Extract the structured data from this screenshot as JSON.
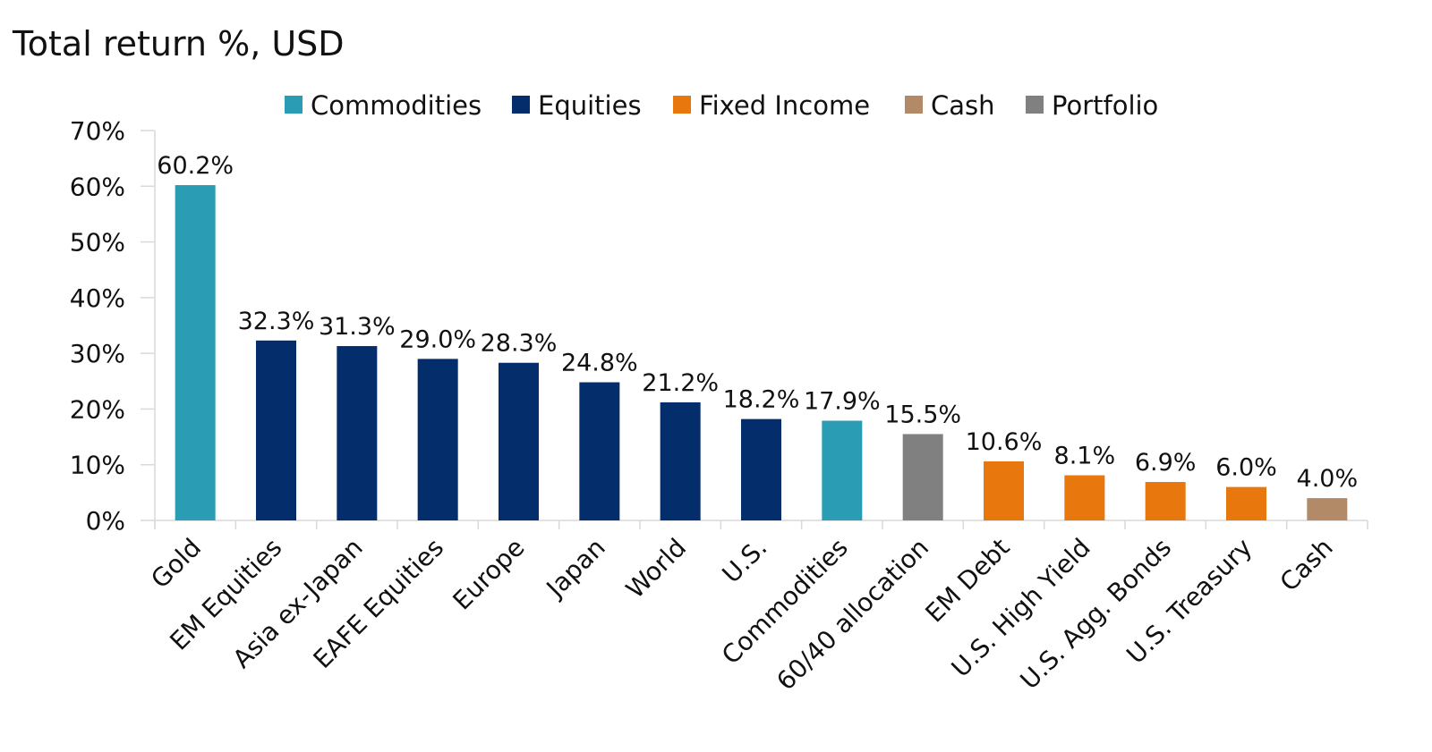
{
  "chart_data": {
    "type": "bar",
    "title": "Total return %, USD",
    "xlabel": "",
    "ylabel": "",
    "ylim": [
      0,
      70
    ],
    "y_ticks": [
      "0%",
      "10%",
      "20%",
      "30%",
      "40%",
      "50%",
      "60%",
      "70%"
    ],
    "y_tick_values": [
      0,
      10,
      20,
      30,
      40,
      50,
      60,
      70
    ],
    "grid": false,
    "legend_position": "top",
    "legend": [
      {
        "name": "Commodities",
        "color": "#2a9db4"
      },
      {
        "name": "Equities",
        "color": "#032d6b"
      },
      {
        "name": "Fixed Income",
        "color": "#e8770d"
      },
      {
        "name": "Cash",
        "color": "#b38a67"
      },
      {
        "name": "Portfolio",
        "color": "#808080"
      }
    ],
    "categories": [
      "Gold",
      "EM Equities",
      "Asia ex-Japan",
      "EAFE Equities",
      "Europe",
      "Japan",
      "World",
      "U.S.",
      "Commodities",
      "60/40 allocation",
      "EM Debt",
      "U.S. High Yield",
      "U.S. Agg. Bonds",
      "U.S. Treasury",
      "Cash"
    ],
    "values": [
      60.2,
      32.3,
      31.3,
      29.0,
      28.3,
      24.8,
      21.2,
      18.2,
      17.9,
      15.5,
      10.6,
      8.1,
      6.9,
      6.0,
      4.0
    ],
    "data_labels": [
      "60.2%",
      "32.3%",
      "31.3%",
      "29.0%",
      "28.3%",
      "24.8%",
      "21.2%",
      "18.2%",
      "17.9%",
      "15.5%",
      "10.6%",
      "8.1%",
      "6.9%",
      "6.0%",
      "4.0%"
    ],
    "groups": [
      0,
      1,
      1,
      1,
      1,
      1,
      1,
      1,
      0,
      4,
      2,
      2,
      2,
      2,
      3
    ]
  }
}
